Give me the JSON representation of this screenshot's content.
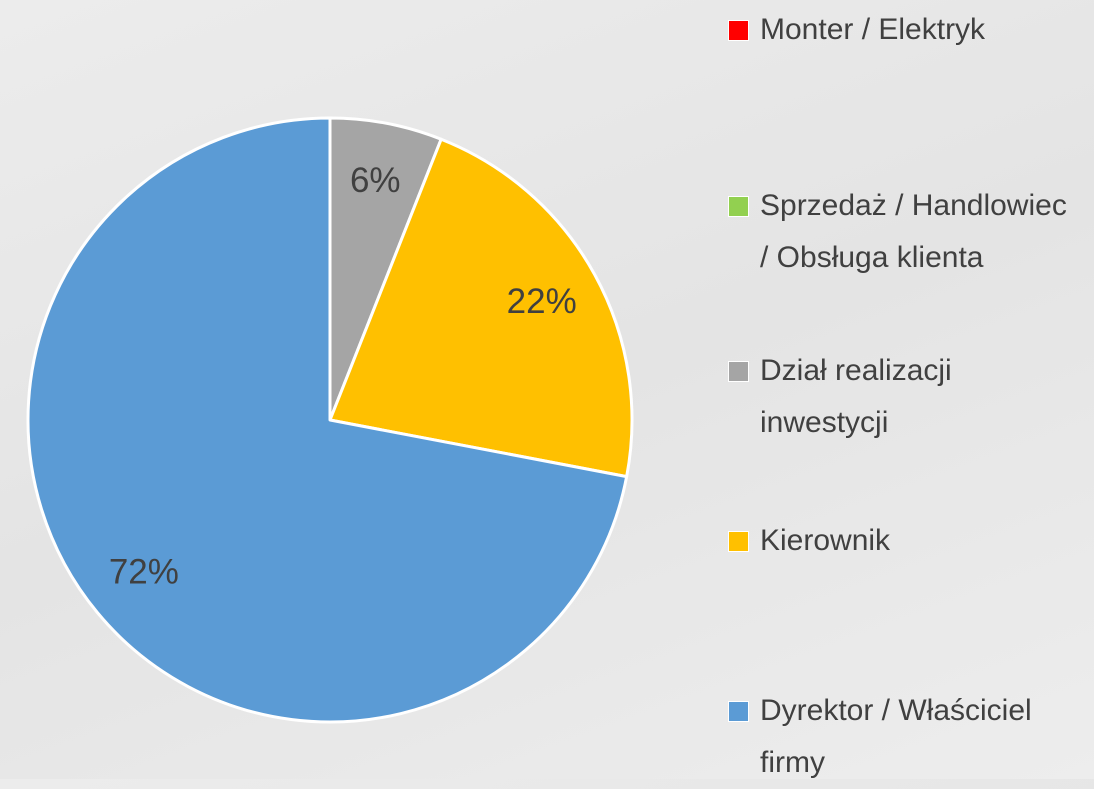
{
  "chart_data": {
    "type": "pie",
    "categories": [
      "Monter / Elektryk",
      "Sprzedaż / Handlowiec / Obsługa klienta",
      "Dział realizacji inwestycji",
      "Kierownik",
      "Dyrektor / Właściciel firmy"
    ],
    "values": [
      0,
      0,
      6,
      22,
      72
    ],
    "value_labels": [
      null,
      null,
      "6%",
      "22%",
      "72%"
    ],
    "colors": [
      "#ff0000",
      "#92d050",
      "#a5a5a5",
      "#ffc000",
      "#5b9bd5"
    ],
    "legend": "right"
  }
}
